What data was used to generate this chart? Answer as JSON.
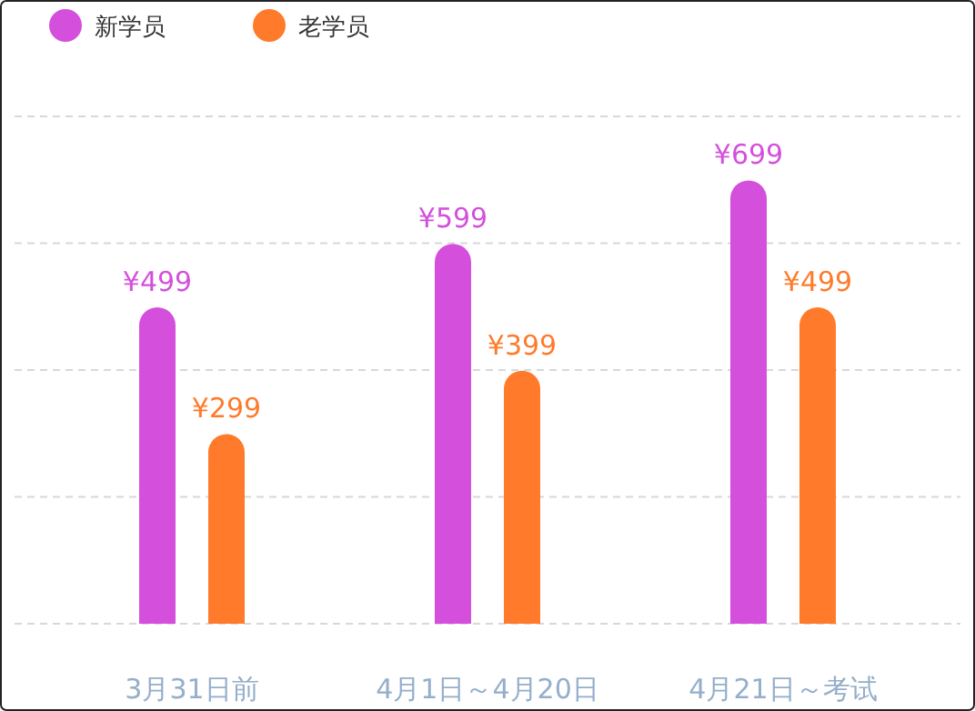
{
  "chart_data": {
    "type": "bar",
    "categories": [
      "3月31日前",
      "4月1日～4月20日",
      "4月21日～考试"
    ],
    "series": [
      {
        "name": "新学员",
        "color": "#d44fdc",
        "values": [
          499,
          599,
          699
        ],
        "value_labels": [
          "¥499",
          "¥599",
          "¥699"
        ]
      },
      {
        "name": "老学员",
        "color": "#ff7a2a",
        "values": [
          299,
          399,
          499
        ],
        "value_labels": [
          "¥299",
          "¥399",
          "¥499"
        ]
      }
    ],
    "ylim": [
      0,
      800
    ],
    "yticks": [
      {
        "value": 0,
        "label": null
      },
      {
        "value": 200,
        "label": null
      },
      {
        "value": 400,
        "label": null
      },
      {
        "value": 600,
        "label": null
      },
      {
        "value": 800,
        "label": null
      }
    ],
    "tick_labels": "x",
    "grid": "y",
    "legend": "top left"
  }
}
